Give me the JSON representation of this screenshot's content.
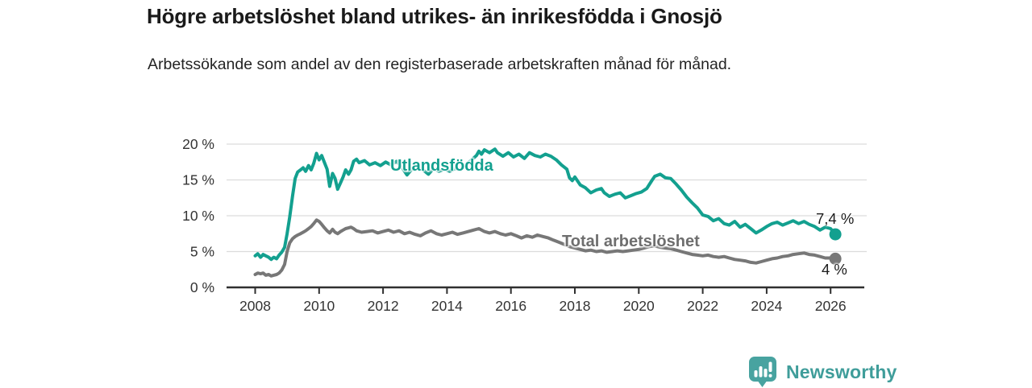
{
  "header": {
    "title": "Högre arbetslöshet bland utrikes- än inrikesfödda i Gnosjö",
    "subtitle": "Arbetssökande som andel av den registerbaserade arbetskraften månad för månad."
  },
  "chart_data": {
    "type": "line",
    "title": "Högre arbetslöshet bland utrikes- än inrikesfödda i Gnosjö",
    "subtitle": "Arbetssökande som andel av den registerbaserade arbetskraften månad för månad.",
    "xlabel": "",
    "ylabel": "",
    "x_ticks": [
      2008,
      2010,
      2012,
      2014,
      2016,
      2018,
      2020,
      2022,
      2024,
      2026
    ],
    "y_ticks": [
      0,
      5,
      10,
      15,
      20
    ],
    "y_tick_suffix": " %",
    "xlim": [
      2007.1,
      2027.05
    ],
    "ylim": [
      0,
      21.6
    ],
    "grid": "horizontal",
    "legend_position": "inline-labels",
    "colors": {
      "grid": "#dcdcdc",
      "axis": "#2f2f2f",
      "axis_text": "#333333"
    },
    "series": [
      {
        "name": "Utlandsfödda",
        "color": "#13a08f",
        "end_label": "7,4 %",
        "end_value": 7.4,
        "points": [
          [
            2008.0,
            4.4
          ],
          [
            2008.08,
            4.7
          ],
          [
            2008.17,
            4.2
          ],
          [
            2008.25,
            4.6
          ],
          [
            2008.33,
            4.4
          ],
          [
            2008.42,
            4.2
          ],
          [
            2008.5,
            3.9
          ],
          [
            2008.58,
            4.2
          ],
          [
            2008.67,
            4.0
          ],
          [
            2008.75,
            4.5
          ],
          [
            2008.83,
            4.9
          ],
          [
            2008.92,
            5.6
          ],
          [
            2009.0,
            7.5
          ],
          [
            2009.08,
            9.8
          ],
          [
            2009.17,
            12.8
          ],
          [
            2009.25,
            15.2
          ],
          [
            2009.33,
            16.1
          ],
          [
            2009.42,
            16.4
          ],
          [
            2009.5,
            16.7
          ],
          [
            2009.58,
            16.2
          ],
          [
            2009.67,
            17.0
          ],
          [
            2009.75,
            16.4
          ],
          [
            2009.83,
            17.3
          ],
          [
            2009.92,
            18.7
          ],
          [
            2010.0,
            17.8
          ],
          [
            2010.08,
            18.4
          ],
          [
            2010.17,
            17.4
          ],
          [
            2010.25,
            16.5
          ],
          [
            2010.33,
            14.1
          ],
          [
            2010.42,
            15.9
          ],
          [
            2010.5,
            15.2
          ],
          [
            2010.58,
            13.7
          ],
          [
            2010.67,
            14.6
          ],
          [
            2010.75,
            15.4
          ],
          [
            2010.83,
            16.4
          ],
          [
            2010.92,
            15.8
          ],
          [
            2011.0,
            16.4
          ],
          [
            2011.08,
            17.6
          ],
          [
            2011.17,
            17.9
          ],
          [
            2011.25,
            17.4
          ],
          [
            2011.42,
            17.7
          ],
          [
            2011.58,
            17.1
          ],
          [
            2011.75,
            17.4
          ],
          [
            2011.92,
            17.0
          ],
          [
            2012.08,
            17.5
          ],
          [
            2012.25,
            17.1
          ],
          [
            2012.42,
            17.6
          ],
          [
            2012.58,
            16.8
          ],
          [
            2012.75,
            15.7
          ],
          [
            2012.92,
            16.6
          ],
          [
            2013.08,
            16.9
          ],
          [
            2013.25,
            16.4
          ],
          [
            2013.42,
            15.8
          ],
          [
            2013.58,
            16.6
          ],
          [
            2013.75,
            16.2
          ],
          [
            2013.92,
            16.5
          ],
          [
            2014.08,
            16.2
          ],
          [
            2014.25,
            16.6
          ],
          [
            2014.42,
            16.4
          ],
          [
            2014.58,
            17.1
          ],
          [
            2014.75,
            17.7
          ],
          [
            2014.92,
            18.4
          ],
          [
            2015.0,
            19.0
          ],
          [
            2015.08,
            18.6
          ],
          [
            2015.17,
            19.2
          ],
          [
            2015.33,
            18.8
          ],
          [
            2015.5,
            19.3
          ],
          [
            2015.58,
            18.8
          ],
          [
            2015.75,
            18.3
          ],
          [
            2015.92,
            18.8
          ],
          [
            2016.08,
            18.2
          ],
          [
            2016.25,
            18.6
          ],
          [
            2016.42,
            18.0
          ],
          [
            2016.58,
            18.8
          ],
          [
            2016.75,
            18.4
          ],
          [
            2016.92,
            18.2
          ],
          [
            2017.08,
            18.6
          ],
          [
            2017.25,
            18.3
          ],
          [
            2017.42,
            17.8
          ],
          [
            2017.58,
            17.1
          ],
          [
            2017.75,
            16.5
          ],
          [
            2017.83,
            15.3
          ],
          [
            2017.92,
            14.9
          ],
          [
            2018.0,
            15.4
          ],
          [
            2018.17,
            14.3
          ],
          [
            2018.33,
            13.9
          ],
          [
            2018.5,
            13.2
          ],
          [
            2018.67,
            13.6
          ],
          [
            2018.83,
            13.8
          ],
          [
            2018.92,
            13.2
          ],
          [
            2019.08,
            12.7
          ],
          [
            2019.25,
            13.0
          ],
          [
            2019.42,
            13.2
          ],
          [
            2019.58,
            12.5
          ],
          [
            2019.75,
            12.8
          ],
          [
            2019.92,
            13.1
          ],
          [
            2020.08,
            13.3
          ],
          [
            2020.25,
            13.8
          ],
          [
            2020.42,
            15.0
          ],
          [
            2020.5,
            15.5
          ],
          [
            2020.67,
            15.8
          ],
          [
            2020.83,
            15.3
          ],
          [
            2021.0,
            15.2
          ],
          [
            2021.17,
            14.4
          ],
          [
            2021.33,
            13.6
          ],
          [
            2021.5,
            12.6
          ],
          [
            2021.67,
            11.8
          ],
          [
            2021.83,
            11.1
          ],
          [
            2022.0,
            10.1
          ],
          [
            2022.17,
            9.9
          ],
          [
            2022.33,
            9.3
          ],
          [
            2022.5,
            9.6
          ],
          [
            2022.67,
            8.9
          ],
          [
            2022.83,
            8.7
          ],
          [
            2023.0,
            9.2
          ],
          [
            2023.17,
            8.4
          ],
          [
            2023.33,
            8.8
          ],
          [
            2023.5,
            8.2
          ],
          [
            2023.67,
            7.6
          ],
          [
            2023.83,
            8.0
          ],
          [
            2024.0,
            8.5
          ],
          [
            2024.17,
            8.9
          ],
          [
            2024.33,
            9.1
          ],
          [
            2024.5,
            8.7
          ],
          [
            2024.67,
            9.0
          ],
          [
            2024.83,
            9.3
          ],
          [
            2025.0,
            8.9
          ],
          [
            2025.17,
            9.2
          ],
          [
            2025.33,
            8.8
          ],
          [
            2025.5,
            8.5
          ],
          [
            2025.67,
            8.0
          ],
          [
            2025.83,
            8.4
          ],
          [
            2026.0,
            8.2
          ],
          [
            2026.15,
            7.4
          ]
        ]
      },
      {
        "name": "Total arbetslöshet",
        "color": "#777777",
        "end_label": "4 %",
        "end_value": 4.0,
        "points": [
          [
            2008.0,
            1.8
          ],
          [
            2008.08,
            2.0
          ],
          [
            2008.17,
            1.9
          ],
          [
            2008.25,
            2.0
          ],
          [
            2008.33,
            1.7
          ],
          [
            2008.42,
            1.8
          ],
          [
            2008.5,
            1.6
          ],
          [
            2008.58,
            1.7
          ],
          [
            2008.67,
            1.8
          ],
          [
            2008.75,
            2.0
          ],
          [
            2008.83,
            2.4
          ],
          [
            2008.92,
            3.2
          ],
          [
            2009.0,
            5.0
          ],
          [
            2009.08,
            6.2
          ],
          [
            2009.17,
            6.8
          ],
          [
            2009.25,
            7.1
          ],
          [
            2009.33,
            7.3
          ],
          [
            2009.42,
            7.5
          ],
          [
            2009.5,
            7.7
          ],
          [
            2009.58,
            7.9
          ],
          [
            2009.67,
            8.2
          ],
          [
            2009.75,
            8.5
          ],
          [
            2009.83,
            8.9
          ],
          [
            2009.92,
            9.4
          ],
          [
            2010.0,
            9.2
          ],
          [
            2010.08,
            8.8
          ],
          [
            2010.17,
            8.3
          ],
          [
            2010.25,
            7.9
          ],
          [
            2010.33,
            7.6
          ],
          [
            2010.42,
            8.1
          ],
          [
            2010.5,
            7.7
          ],
          [
            2010.58,
            7.5
          ],
          [
            2010.67,
            7.8
          ],
          [
            2010.75,
            8.0
          ],
          [
            2010.83,
            8.2
          ],
          [
            2010.92,
            8.3
          ],
          [
            2011.0,
            8.4
          ],
          [
            2011.08,
            8.2
          ],
          [
            2011.17,
            7.9
          ],
          [
            2011.33,
            7.7
          ],
          [
            2011.5,
            7.8
          ],
          [
            2011.67,
            7.9
          ],
          [
            2011.83,
            7.6
          ],
          [
            2012.0,
            7.8
          ],
          [
            2012.17,
            8.0
          ],
          [
            2012.33,
            7.7
          ],
          [
            2012.5,
            7.9
          ],
          [
            2012.67,
            7.5
          ],
          [
            2012.83,
            7.7
          ],
          [
            2013.0,
            7.4
          ],
          [
            2013.17,
            7.2
          ],
          [
            2013.33,
            7.6
          ],
          [
            2013.5,
            7.9
          ],
          [
            2013.67,
            7.5
          ],
          [
            2013.83,
            7.3
          ],
          [
            2014.0,
            7.5
          ],
          [
            2014.17,
            7.7
          ],
          [
            2014.33,
            7.4
          ],
          [
            2014.5,
            7.6
          ],
          [
            2014.67,
            7.8
          ],
          [
            2014.83,
            8.0
          ],
          [
            2015.0,
            8.2
          ],
          [
            2015.17,
            7.8
          ],
          [
            2015.33,
            7.6
          ],
          [
            2015.5,
            7.8
          ],
          [
            2015.67,
            7.5
          ],
          [
            2015.83,
            7.3
          ],
          [
            2016.0,
            7.5
          ],
          [
            2016.17,
            7.2
          ],
          [
            2016.33,
            6.9
          ],
          [
            2016.5,
            7.2
          ],
          [
            2016.67,
            7.0
          ],
          [
            2016.83,
            7.3
          ],
          [
            2017.0,
            7.1
          ],
          [
            2017.17,
            6.9
          ],
          [
            2017.33,
            6.6
          ],
          [
            2017.5,
            6.3
          ],
          [
            2017.67,
            6.0
          ],
          [
            2017.83,
            5.7
          ],
          [
            2018.0,
            5.5
          ],
          [
            2018.17,
            5.3
          ],
          [
            2018.33,
            5.1
          ],
          [
            2018.5,
            5.2
          ],
          [
            2018.67,
            5.0
          ],
          [
            2018.83,
            5.1
          ],
          [
            2019.0,
            4.9
          ],
          [
            2019.17,
            5.0
          ],
          [
            2019.33,
            5.1
          ],
          [
            2019.5,
            5.0
          ],
          [
            2019.67,
            5.1
          ],
          [
            2019.83,
            5.2
          ],
          [
            2020.0,
            5.3
          ],
          [
            2020.17,
            5.5
          ],
          [
            2020.33,
            5.7
          ],
          [
            2020.5,
            5.8
          ],
          [
            2020.67,
            5.6
          ],
          [
            2020.83,
            5.5
          ],
          [
            2021.0,
            5.4
          ],
          [
            2021.17,
            5.2
          ],
          [
            2021.33,
            5.0
          ],
          [
            2021.5,
            4.8
          ],
          [
            2021.67,
            4.6
          ],
          [
            2021.83,
            4.5
          ],
          [
            2022.0,
            4.4
          ],
          [
            2022.17,
            4.5
          ],
          [
            2022.33,
            4.3
          ],
          [
            2022.5,
            4.2
          ],
          [
            2022.67,
            4.3
          ],
          [
            2022.83,
            4.1
          ],
          [
            2023.0,
            3.9
          ],
          [
            2023.17,
            3.8
          ],
          [
            2023.33,
            3.7
          ],
          [
            2023.5,
            3.5
          ],
          [
            2023.67,
            3.4
          ],
          [
            2023.83,
            3.6
          ],
          [
            2024.0,
            3.8
          ],
          [
            2024.17,
            4.0
          ],
          [
            2024.33,
            4.1
          ],
          [
            2024.5,
            4.3
          ],
          [
            2024.67,
            4.4
          ],
          [
            2024.83,
            4.6
          ],
          [
            2025.0,
            4.7
          ],
          [
            2025.17,
            4.8
          ],
          [
            2025.33,
            4.6
          ],
          [
            2025.5,
            4.5
          ],
          [
            2025.67,
            4.3
          ],
          [
            2025.83,
            4.1
          ],
          [
            2026.0,
            4.1
          ],
          [
            2026.15,
            4.0
          ]
        ]
      }
    ]
  },
  "footer": {
    "brand": "Newsworthy",
    "logo_icon": "newsworthy-bar-chart-bubble-icon",
    "logo_icon_color": "#48a3a0",
    "logo_text_color": "#3f9d9a"
  }
}
